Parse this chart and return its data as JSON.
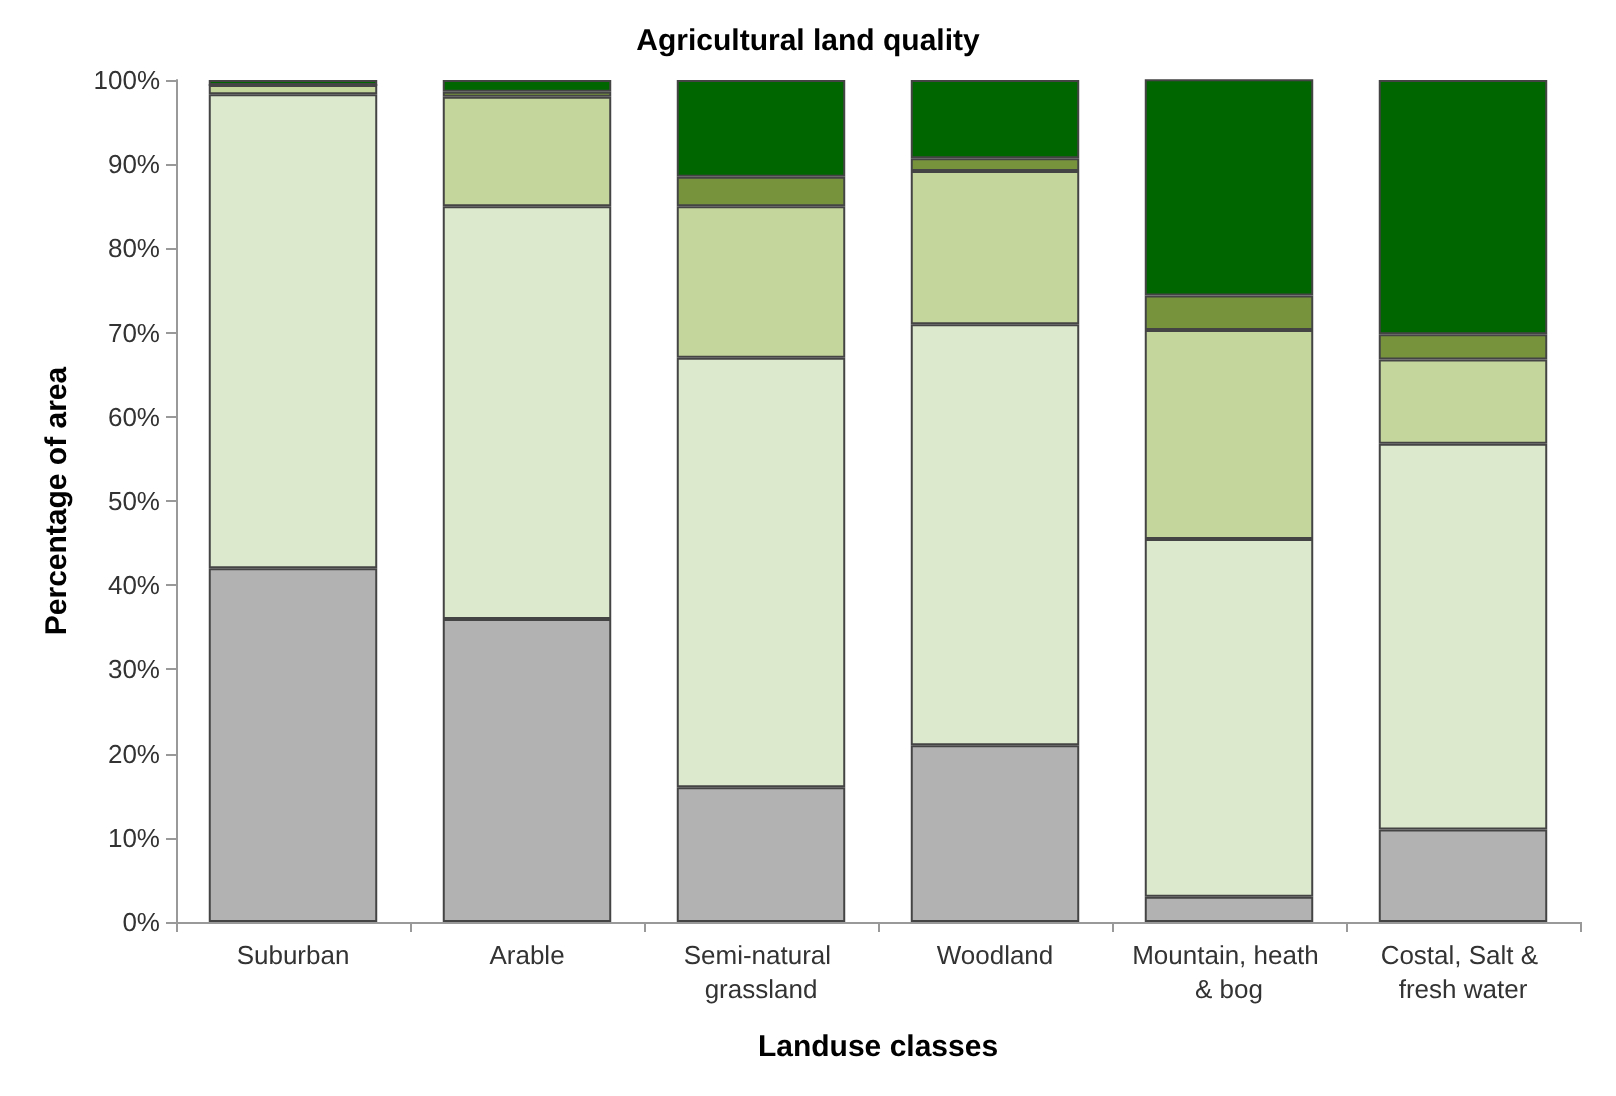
{
  "chart_data": {
    "type": "bar",
    "title": "Agricultural land quality",
    "xlabel": "Landuse classes",
    "ylabel": "Percentage of area",
    "stacked": true,
    "grid": false,
    "categories": [
      "Suburban",
      "Arable",
      "Semi-natural grassland",
      "Woodland",
      "Mountain, heath & bog",
      "Costal, Salt & fresh water"
    ],
    "series": [
      {
        "color": "#b2b2b2",
        "values": [
          42,
          36,
          16,
          21,
          3,
          11
        ]
      },
      {
        "color": "#dde9cd",
        "values": [
          56.3,
          49,
          51,
          50,
          42.5,
          45.8
        ]
      },
      {
        "color": "#c4d69b",
        "values": [
          1.1,
          13,
          18,
          18.2,
          24.8,
          10
        ]
      },
      {
        "color": "#77933c",
        "values": [
          0,
          0.6,
          3.5,
          1.5,
          4.1,
          3
        ]
      },
      {
        "color": "#006600",
        "values": [
          0.6,
          1.4,
          11.5,
          9.3,
          25.7,
          30.2
        ]
      }
    ],
    "ylim": [
      0,
      100
    ],
    "yticks": [
      {
        "value": 0,
        "label": "0%"
      },
      {
        "value": 10,
        "label": "10%"
      },
      {
        "value": 20,
        "label": "20%"
      },
      {
        "value": 30,
        "label": "30%"
      },
      {
        "value": 40,
        "label": "40%"
      },
      {
        "value": 50,
        "label": "50%"
      },
      {
        "value": 60,
        "label": "60%"
      },
      {
        "value": 70,
        "label": "70%"
      },
      {
        "value": 80,
        "label": "80%"
      },
      {
        "value": 90,
        "label": "90%"
      },
      {
        "value": 100,
        "label": "100%"
      }
    ]
  }
}
